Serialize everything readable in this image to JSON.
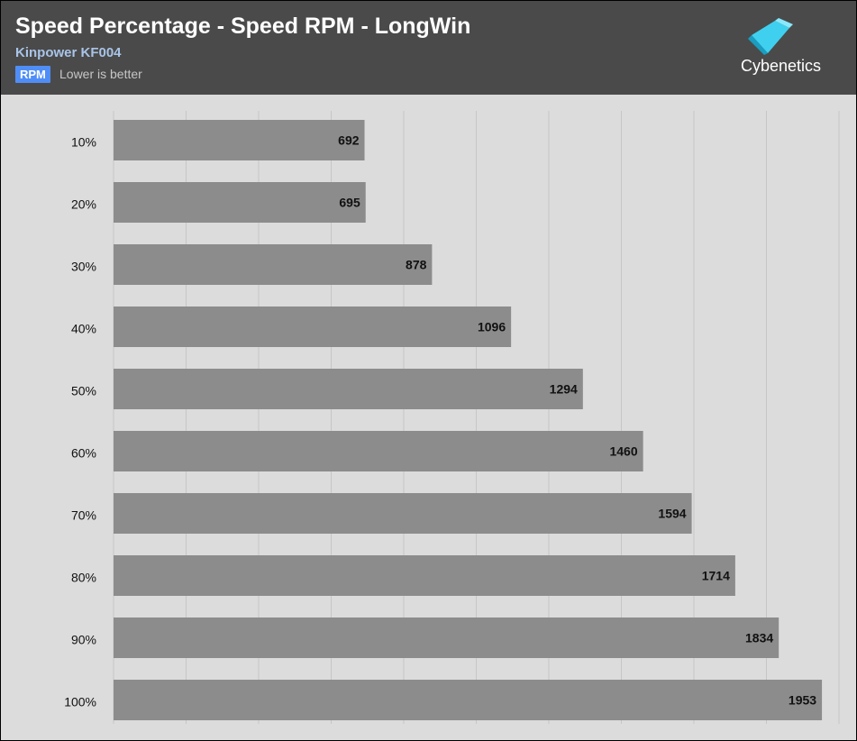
{
  "header": {
    "title": "Speed Percentage - Speed RPM - LongWin",
    "subtitle": "Kinpower KF004",
    "unit_badge": "RPM",
    "note": "Lower is better",
    "logo_text": "Cybenetics"
  },
  "colors": {
    "header_bg": "#4a4a4a",
    "plot_bg": "#dcdcdc",
    "bar": "#8c8c8c",
    "badge": "#4f8ef7",
    "logo_accent": "#3fd0f0"
  },
  "chart_data": {
    "type": "bar",
    "orientation": "horizontal",
    "categories": [
      "10%",
      "20%",
      "30%",
      "40%",
      "50%",
      "60%",
      "70%",
      "80%",
      "90%",
      "100%"
    ],
    "values": [
      692,
      695,
      878,
      1096,
      1294,
      1460,
      1594,
      1714,
      1834,
      1953
    ],
    "xlim": [
      0,
      2000
    ],
    "grid": true,
    "title": "Speed Percentage - Speed RPM - LongWin",
    "subtitle": "Kinpower KF004",
    "xlabel": "",
    "ylabel": ""
  }
}
